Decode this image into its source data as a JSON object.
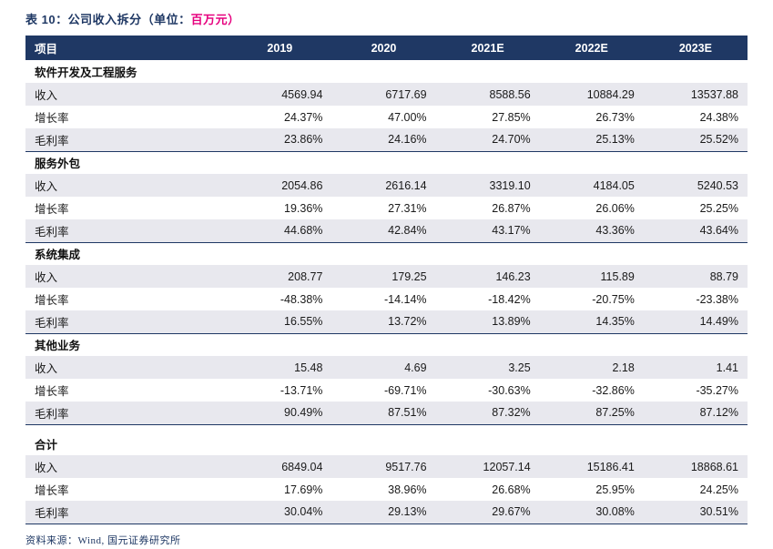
{
  "title": {
    "prefix": "表 10：",
    "main": "公司收入拆分（单位：",
    "unit": "百万元）"
  },
  "table": {
    "columns": [
      "项目",
      "2019",
      "2020",
      "2021E",
      "2022E",
      "2023E"
    ],
    "sections": [
      {
        "name": "软件开发及工程服务",
        "rows": [
          {
            "label": "收入",
            "values": [
              "4569.94",
              "6717.69",
              "8588.56",
              "10884.29",
              "13537.88"
            ]
          },
          {
            "label": "增长率",
            "values": [
              "24.37%",
              "47.00%",
              "27.85%",
              "26.73%",
              "24.38%"
            ]
          },
          {
            "label": "毛利率",
            "values": [
              "23.86%",
              "24.16%",
              "24.70%",
              "25.13%",
              "25.52%"
            ]
          }
        ]
      },
      {
        "name": "服务外包",
        "rows": [
          {
            "label": "收入",
            "values": [
              "2054.86",
              "2616.14",
              "3319.10",
              "4184.05",
              "5240.53"
            ]
          },
          {
            "label": "增长率",
            "values": [
              "19.36%",
              "27.31%",
              "26.87%",
              "26.06%",
              "25.25%"
            ]
          },
          {
            "label": "毛利率",
            "values": [
              "44.68%",
              "42.84%",
              "43.17%",
              "43.36%",
              "43.64%"
            ]
          }
        ]
      },
      {
        "name": "系统集成",
        "rows": [
          {
            "label": "收入",
            "values": [
              "208.77",
              "179.25",
              "146.23",
              "115.89",
              "88.79"
            ]
          },
          {
            "label": "增长率",
            "values": [
              "-48.38%",
              "-14.14%",
              "-18.42%",
              "-20.75%",
              "-23.38%"
            ]
          },
          {
            "label": "毛利率",
            "values": [
              "16.55%",
              "13.72%",
              "13.89%",
              "14.35%",
              "14.49%"
            ]
          }
        ]
      },
      {
        "name": "其他业务",
        "rows": [
          {
            "label": "收入",
            "values": [
              "15.48",
              "4.69",
              "3.25",
              "2.18",
              "1.41"
            ]
          },
          {
            "label": "增长率",
            "values": [
              "-13.71%",
              "-69.71%",
              "-30.63%",
              "-32.86%",
              "-35.27%"
            ]
          },
          {
            "label": "毛利率",
            "values": [
              "90.49%",
              "87.51%",
              "87.32%",
              "87.25%",
              "87.12%"
            ]
          }
        ]
      },
      {
        "name": "合计",
        "rows": [
          {
            "label": "收入",
            "values": [
              "6849.04",
              "9517.76",
              "12057.14",
              "15186.41",
              "18868.61"
            ]
          },
          {
            "label": "增长率",
            "values": [
              "17.69%",
              "38.96%",
              "26.68%",
              "25.95%",
              "24.25%"
            ]
          },
          {
            "label": "毛利率",
            "values": [
              "30.04%",
              "29.13%",
              "29.67%",
              "30.08%",
              "30.51%"
            ]
          }
        ]
      }
    ]
  },
  "footer": {
    "source": "资料来源：Wind, 国元证券研究所"
  },
  "colors": {
    "header_bg": "#1F3864",
    "header_text": "#FFFFFF",
    "stripe_bg": "#E8E8EE",
    "accent": "#1F3864",
    "unit_text": "#E6007E"
  }
}
